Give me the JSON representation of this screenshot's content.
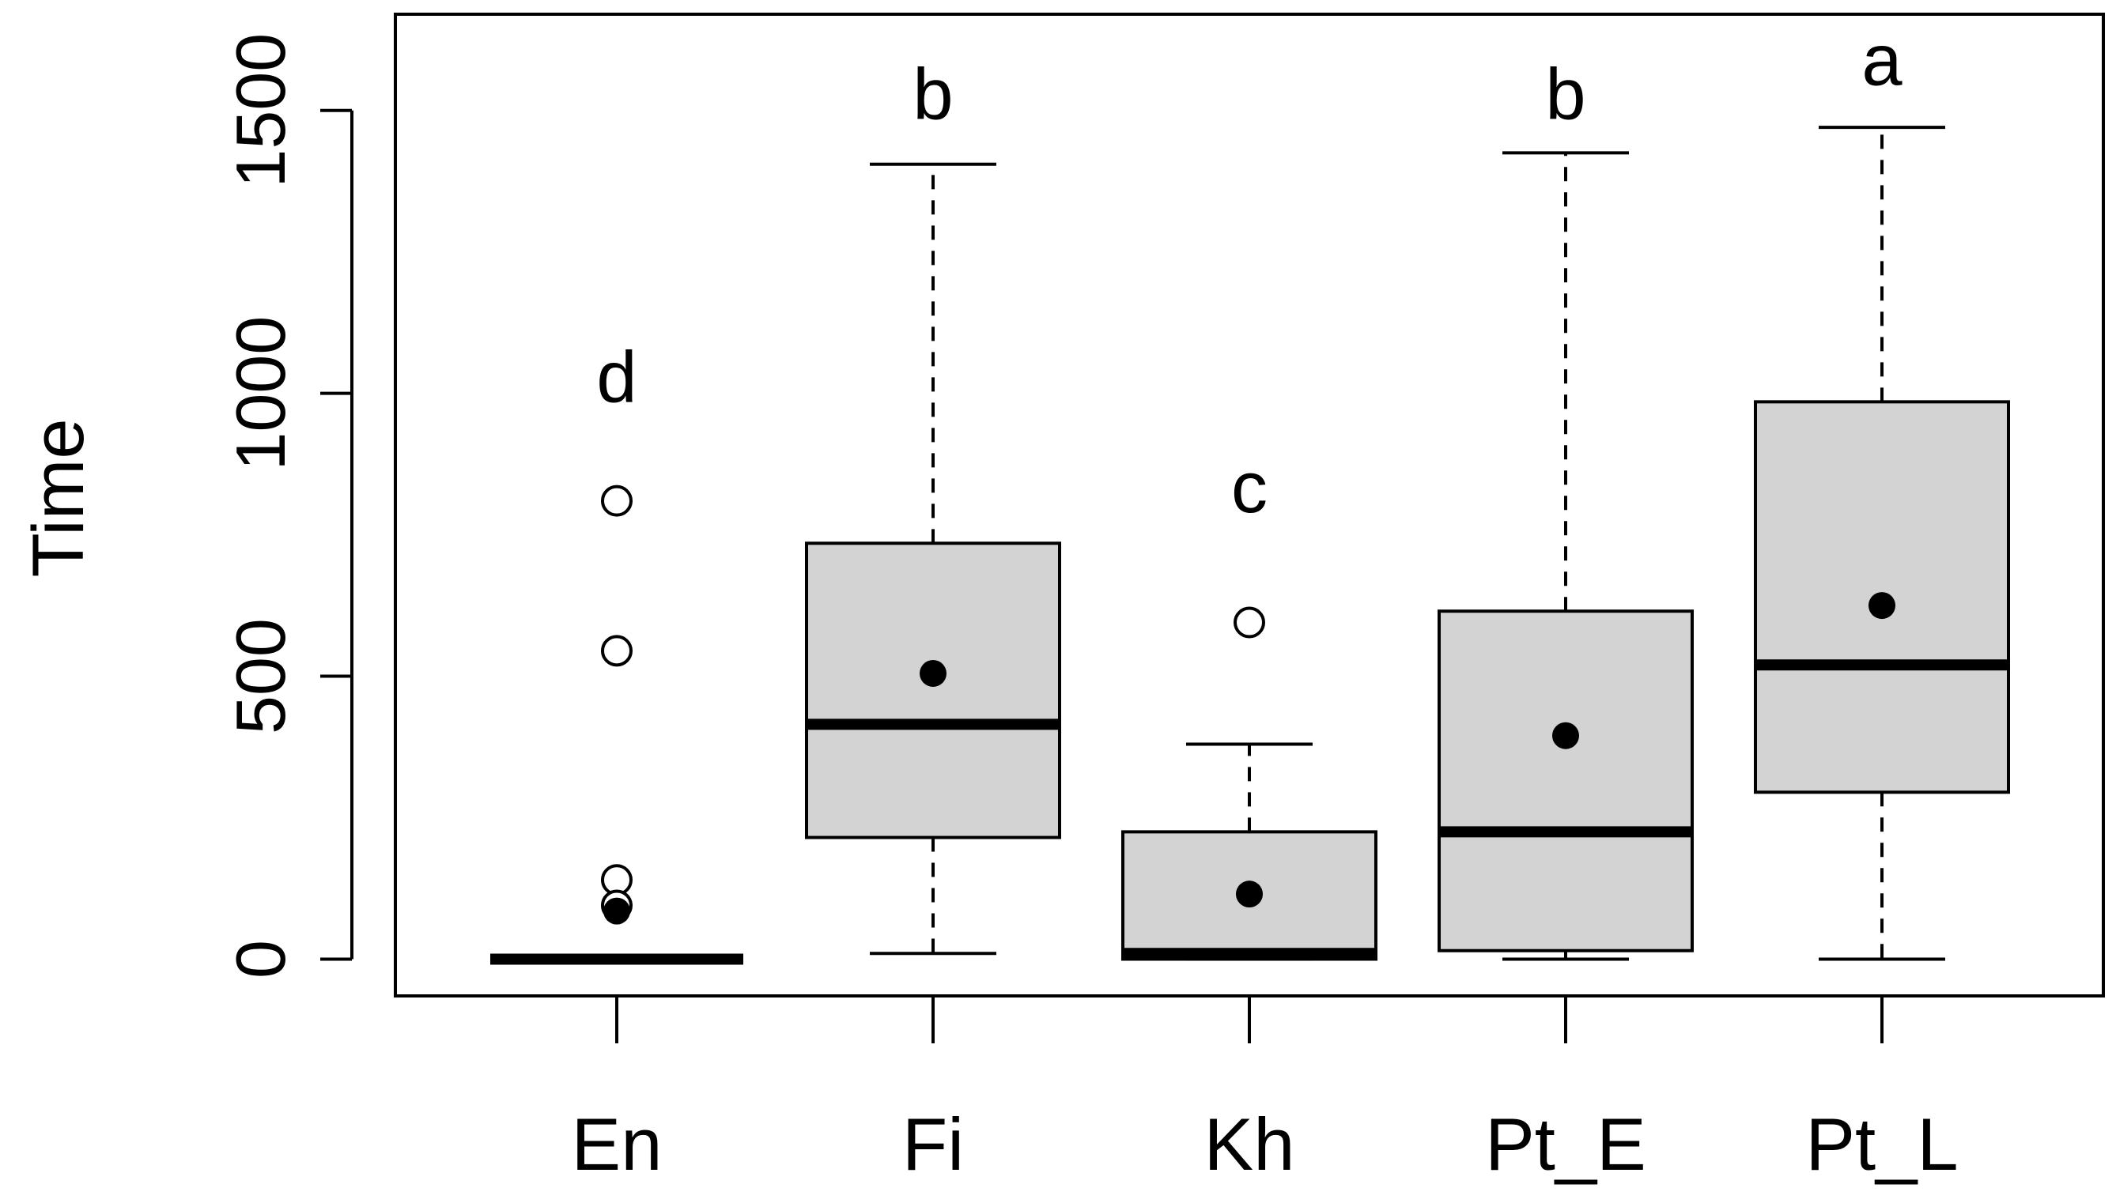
{
  "chart_data": {
    "type": "boxplot",
    "ylabel": "Time",
    "xlabel": "",
    "ylim": [
      -65,
      1670
    ],
    "y_ticks": [
      "0",
      "500",
      "1000",
      "1500"
    ],
    "y_tick_values": [
      0,
      500,
      1000,
      1500
    ],
    "categories": [
      "En",
      "Fi",
      "Kh",
      "Pt_E",
      "Pt_L"
    ],
    "boxes": [
      {
        "category": "En",
        "letter": "d",
        "whisker_low": 0,
        "q1": 0,
        "median": 0,
        "q3": 0,
        "whisker_high": 0,
        "mean": 85,
        "outliers": [
          810,
          545,
          140,
          95
        ]
      },
      {
        "category": "Fi",
        "letter": "b",
        "whisker_low": 10,
        "q1": 215,
        "median": 415,
        "q3": 735,
        "whisker_high": 1405,
        "mean": 505,
        "outliers": []
      },
      {
        "category": "Kh",
        "letter": "c",
        "whisker_low": 0,
        "q1": 0,
        "median": 10,
        "q3": 225,
        "whisker_high": 380,
        "mean": 115,
        "outliers": [
          595
        ]
      },
      {
        "category": "Pt_E",
        "letter": "b",
        "whisker_low": 0,
        "q1": 15,
        "median": 225,
        "q3": 615,
        "whisker_high": 1425,
        "mean": 395,
        "outliers": []
      },
      {
        "category": "Pt_L",
        "letter": "a",
        "whisker_low": 0,
        "q1": 295,
        "median": 520,
        "q3": 985,
        "whisker_high": 1470,
        "mean": 625,
        "outliers": []
      }
    ],
    "letter_values": [
      985,
      1485,
      790,
      1485,
      1545
    ],
    "box_fill": "#d3d3d3",
    "line_color": "#000000",
    "grid": false,
    "legend": "none"
  }
}
